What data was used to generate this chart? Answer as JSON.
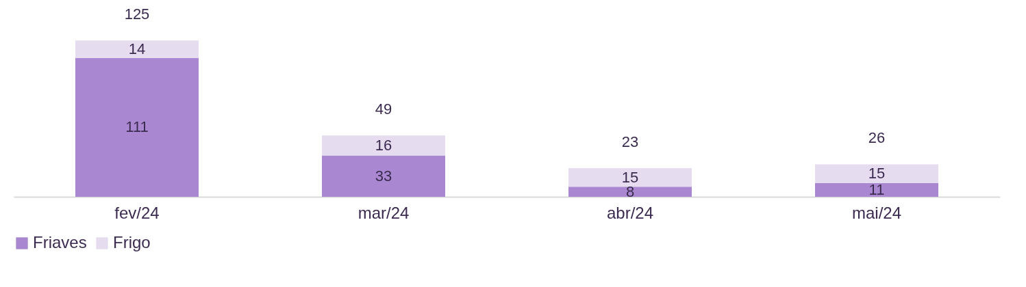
{
  "chart_data": {
    "type": "bar",
    "stacked": true,
    "categories": [
      "fev/24",
      "mar/24",
      "abr/24",
      "mai/24"
    ],
    "series": [
      {
        "name": "Friaves",
        "color": "#a987d1",
        "values": [
          111,
          33,
          8,
          11
        ]
      },
      {
        "name": "Frigo",
        "color": "#e5dcef",
        "values": [
          14,
          16,
          15,
          15
        ]
      }
    ],
    "data_labels": true,
    "totals": [
      "125",
      "49",
      "23",
      "26"
    ],
    "legend": "bottom left",
    "grid": false
  }
}
